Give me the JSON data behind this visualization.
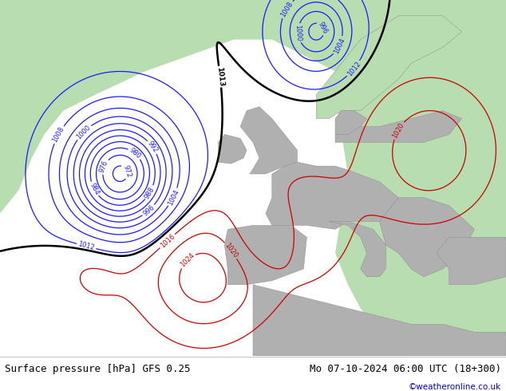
{
  "title_left": "Surface pressure [hPa] GFS 0.25",
  "title_right": "Mo 07-10-2024 06:00 UTC (18+300)",
  "credit": "©weatheronline.co.uk",
  "bg_color": "#d8d8d8",
  "land_color_green": "#b8ddb0",
  "land_color_gray": "#b0b0b0",
  "bottom_bar_color": "#ffffff",
  "title_fontsize": 9,
  "credit_color": "#0000cc",
  "fig_width": 6.34,
  "fig_height": 4.9,
  "dpi": 100
}
